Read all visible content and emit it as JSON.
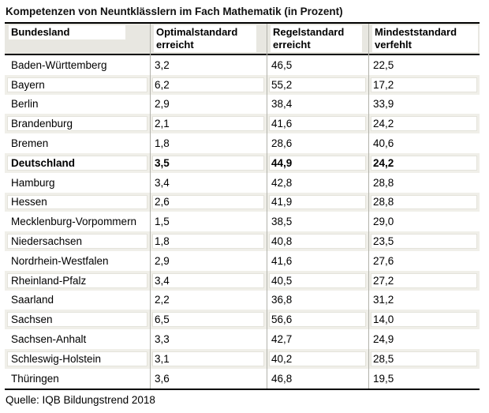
{
  "chart_data": {
    "type": "table",
    "title": "Kompetenzen von Neuntklässlern im Fach Mathematik (in Prozent)",
    "source": "Quelle: IQB Bildungstrend 2018",
    "columns": [
      "Bundesland",
      "Optimalstandard erreicht",
      "Regelstandard erreicht",
      "Mindeststandard verfehlt"
    ],
    "rows": [
      {
        "bundesland": "Baden-Württemberg",
        "optimalstandard": "3,2",
        "regelstandard": "46,5",
        "mindeststandard": "22,5",
        "bold": false
      },
      {
        "bundesland": "Bayern",
        "optimalstandard": "6,2",
        "regelstandard": "55,2",
        "mindeststandard": "17,2",
        "bold": false
      },
      {
        "bundesland": "Berlin",
        "optimalstandard": "2,9",
        "regelstandard": "38,4",
        "mindeststandard": "33,9",
        "bold": false
      },
      {
        "bundesland": "Brandenburg",
        "optimalstandard": "2,1",
        "regelstandard": "41,6",
        "mindeststandard": "24,2",
        "bold": false
      },
      {
        "bundesland": "Bremen",
        "optimalstandard": "1,8",
        "regelstandard": "28,6",
        "mindeststandard": "40,6",
        "bold": false
      },
      {
        "bundesland": "Deutschland",
        "optimalstandard": "3,5",
        "regelstandard": "44,9",
        "mindeststandard": "24,2",
        "bold": true
      },
      {
        "bundesland": "Hamburg",
        "optimalstandard": "3,4",
        "regelstandard": "42,8",
        "mindeststandard": "28,8",
        "bold": false
      },
      {
        "bundesland": "Hessen",
        "optimalstandard": "2,6",
        "regelstandard": "41,9",
        "mindeststandard": "28,8",
        "bold": false
      },
      {
        "bundesland": "Mecklenburg-Vorpommern",
        "optimalstandard": "1,5",
        "regelstandard": "38,5",
        "mindeststandard": "29,0",
        "bold": false
      },
      {
        "bundesland": "Niedersachsen",
        "optimalstandard": "1,8",
        "regelstandard": "40,8",
        "mindeststandard": "23,5",
        "bold": false
      },
      {
        "bundesland": "Nordrhein-Westfalen",
        "optimalstandard": "2,9",
        "regelstandard": "41,6",
        "mindeststandard": "27,6",
        "bold": false
      },
      {
        "bundesland": "Rheinland-Pfalz",
        "optimalstandard": "3,4",
        "regelstandard": "40,5",
        "mindeststandard": "27,2",
        "bold": false
      },
      {
        "bundesland": "Saarland",
        "optimalstandard": "2,2",
        "regelstandard": "36,8",
        "mindeststandard": "31,2",
        "bold": false
      },
      {
        "bundesland": "Sachsen",
        "optimalstandard": "6,5",
        "regelstandard": "56,6",
        "mindeststandard": "14,0",
        "bold": false
      },
      {
        "bundesland": "Sachsen-Anhalt",
        "optimalstandard": "3,3",
        "regelstandard": "42,7",
        "mindeststandard": "24,9",
        "bold": false
      },
      {
        "bundesland": "Schleswig-Holstein",
        "optimalstandard": "3,1",
        "regelstandard": "40,2",
        "mindeststandard": "28,5",
        "bold": false
      },
      {
        "bundesland": "Thüringen",
        "optimalstandard": "3,6",
        "regelstandard": "46,8",
        "mindeststandard": "19,5",
        "bold": false
      }
    ],
    "highlighted_row": "Deutschland",
    "colors": {
      "header_bg": "#e8e7e1",
      "stripe_bg": "#f0efe9",
      "stripe_inner_border": "#e4e3db",
      "rule_black": "#000000",
      "column_separator": "#b2b2ab"
    }
  }
}
